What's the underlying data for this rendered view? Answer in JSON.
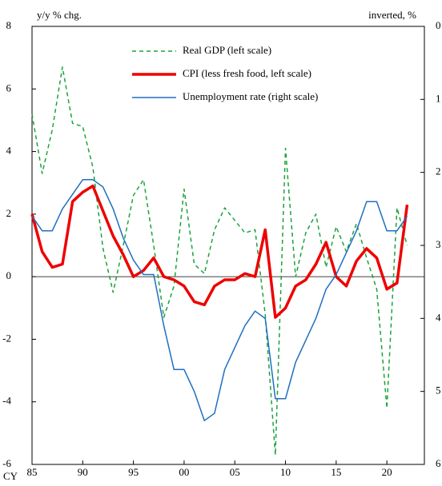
{
  "chart_data": {
    "type": "line",
    "y_label": "y/y % chg.",
    "y2_label": "inverted, %",
    "x_label": "CY",
    "x": [
      1985,
      1986,
      1987,
      1988,
      1989,
      1990,
      1991,
      1992,
      1993,
      1994,
      1995,
      1996,
      1997,
      1998,
      1999,
      2000,
      2001,
      2002,
      2003,
      2004,
      2005,
      2006,
      2007,
      2008,
      2009,
      2010,
      2011,
      2012,
      2013,
      2014,
      2015,
      2016,
      2017,
      2018,
      2019,
      2020,
      2021,
      2022
    ],
    "xlim": [
      1985,
      2023.7
    ],
    "xticks": [
      {
        "value": 1985,
        "label": "85"
      },
      {
        "value": 1990,
        "label": "90"
      },
      {
        "value": 1995,
        "label": "95"
      },
      {
        "value": 2000,
        "label": "00"
      },
      {
        "value": 2005,
        "label": "05"
      },
      {
        "value": 2010,
        "label": "10"
      },
      {
        "value": 2015,
        "label": "15"
      },
      {
        "value": 2020,
        "label": "20"
      }
    ],
    "ylim": [
      -6,
      8
    ],
    "yticks": [
      -6,
      -4,
      -2,
      0,
      2,
      4,
      6,
      8
    ],
    "y2lim": [
      6,
      0
    ],
    "y2ticks": [
      0,
      1,
      2,
      3,
      4,
      5,
      6
    ],
    "legend": "top",
    "series": [
      {
        "name": "Real GDP (left scale)",
        "color": "#1aa33a",
        "dash": "5,4",
        "width": 1.5,
        "values": [
          5.2,
          3.3,
          4.7,
          6.7,
          4.9,
          4.8,
          3.5,
          0.9,
          -0.5,
          1.0,
          2.6,
          3.1,
          1.0,
          -1.3,
          -0.3,
          2.8,
          0.4,
          0.1,
          1.5,
          2.2,
          1.8,
          1.4,
          1.5,
          -1.2,
          -5.7,
          4.1,
          0.0,
          1.4,
          2.0,
          0.3,
          1.6,
          0.8,
          1.7,
          0.6,
          -0.4,
          -4.2,
          2.2,
          1.0
        ]
      },
      {
        "name": "CPI (less fresh food, left scale)",
        "color": "#ee0000",
        "dash": "none",
        "width": 3.5,
        "values": [
          2.0,
          0.8,
          0.3,
          0.4,
          2.4,
          2.7,
          2.9,
          2.1,
          1.3,
          0.7,
          0.0,
          0.2,
          0.6,
          0.0,
          -0.1,
          -0.3,
          -0.8,
          -0.9,
          -0.3,
          -0.1,
          -0.1,
          0.1,
          0.0,
          1.5,
          -1.3,
          -1.0,
          -0.3,
          -0.1,
          0.4,
          1.1,
          0.0,
          -0.3,
          0.5,
          0.9,
          0.6,
          -0.4,
          -0.2,
          2.3
        ]
      },
      {
        "name": "Unemployment rate (right scale)",
        "color": "#1f6fc0",
        "dash": "none",
        "width": 1.5,
        "axis": "y2",
        "values": [
          2.6,
          2.8,
          2.8,
          2.5,
          2.3,
          2.1,
          2.1,
          2.2,
          2.5,
          2.9,
          3.2,
          3.4,
          3.4,
          4.1,
          4.7,
          4.7,
          5.0,
          5.4,
          5.3,
          4.7,
          4.4,
          4.1,
          3.9,
          4.0,
          5.1,
          5.1,
          4.6,
          4.3,
          4.0,
          3.6,
          3.4,
          3.1,
          2.8,
          2.4,
          2.4,
          2.8,
          2.8,
          2.6
        ]
      }
    ]
  }
}
